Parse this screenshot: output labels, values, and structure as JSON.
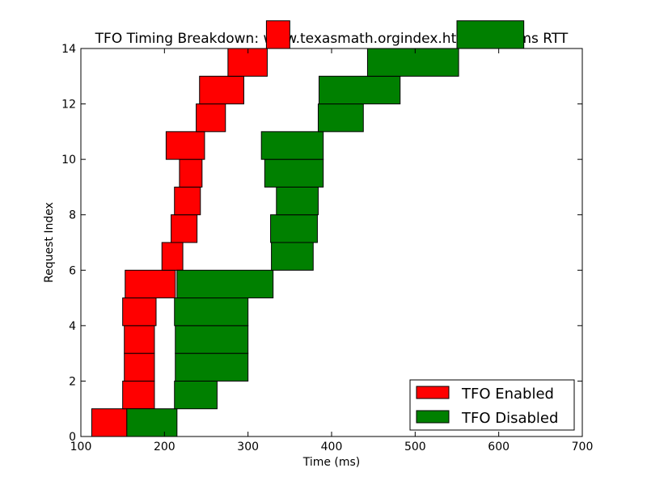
{
  "chart_data": {
    "type": "bar",
    "orientation": "horizontal-range",
    "title": "TFO Timing Breakdown: www.texasmath.orgindex.html at 20 ms RTT",
    "xlabel": "Time (ms)",
    "ylabel": "Request Index",
    "xlim": [
      100,
      700
    ],
    "ylim": [
      0,
      14
    ],
    "xticks": [
      "100",
      "200",
      "300",
      "400",
      "500",
      "600",
      "700"
    ],
    "yticks": [
      "0",
      "2",
      "4",
      "6",
      "8",
      "10",
      "12",
      "14"
    ],
    "grid": false,
    "legend": {
      "placement": "lower-right"
    },
    "series": [
      {
        "name": "TFO Enabled",
        "color": "#ff0000",
        "bars": [
          {
            "index": 0,
            "start": 113,
            "end": 155
          },
          {
            "index": 1,
            "start": 150,
            "end": 188
          },
          {
            "index": 2,
            "start": 152,
            "end": 188
          },
          {
            "index": 3,
            "start": 152,
            "end": 188
          },
          {
            "index": 4,
            "start": 150,
            "end": 190
          },
          {
            "index": 5,
            "start": 153,
            "end": 213
          },
          {
            "index": 6,
            "start": 197,
            "end": 222
          },
          {
            "index": 7,
            "start": 208,
            "end": 239
          },
          {
            "index": 8,
            "start": 212,
            "end": 243
          },
          {
            "index": 9,
            "start": 218,
            "end": 245
          },
          {
            "index": 10,
            "start": 202,
            "end": 248
          },
          {
            "index": 11,
            "start": 238,
            "end": 273
          },
          {
            "index": 12,
            "start": 242,
            "end": 295
          },
          {
            "index": 13,
            "start": 276,
            "end": 323
          },
          {
            "index": 14,
            "start": 322,
            "end": 350
          }
        ]
      },
      {
        "name": "TFO Disabled",
        "color": "#008000",
        "bars": [
          {
            "index": 0,
            "start": 155,
            "end": 215
          },
          {
            "index": 1,
            "start": 212,
            "end": 263
          },
          {
            "index": 2,
            "start": 213,
            "end": 300
          },
          {
            "index": 3,
            "start": 213,
            "end": 300
          },
          {
            "index": 4,
            "start": 212,
            "end": 300
          },
          {
            "index": 5,
            "start": 215,
            "end": 330
          },
          {
            "index": 6,
            "start": 328,
            "end": 378
          },
          {
            "index": 7,
            "start": 327,
            "end": 383
          },
          {
            "index": 8,
            "start": 334,
            "end": 384
          },
          {
            "index": 9,
            "start": 320,
            "end": 390
          },
          {
            "index": 10,
            "start": 316,
            "end": 390
          },
          {
            "index": 11,
            "start": 384,
            "end": 438
          },
          {
            "index": 12,
            "start": 385,
            "end": 482
          },
          {
            "index": 13,
            "start": 443,
            "end": 552
          },
          {
            "index": 14,
            "start": 550,
            "end": 630
          }
        ]
      }
    ]
  }
}
